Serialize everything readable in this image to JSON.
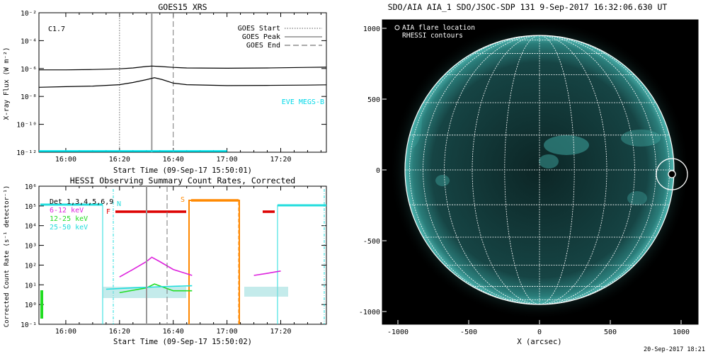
{
  "chart_data": [
    {
      "type": "line",
      "title": "GOES15 XRS",
      "xlabel": "Start Time (09-Sep-17 15:50:01)",
      "ylabel": "X-ray Flux (W m⁻²)",
      "yscale": "log",
      "xlim_minutes_after_15_50": [
        0,
        107
      ],
      "ylim": [
        1e-12,
        0.01
      ],
      "x_ticks": [
        "16:00",
        "16:20",
        "16:40",
        "17:00",
        "17:20"
      ],
      "y_ticks": [
        "10⁻¹²",
        "10⁻¹⁰",
        "10⁻⁸",
        "10⁻⁶",
        "10⁻⁴",
        "10⁻²"
      ],
      "flare_class": "C1.7",
      "legend": [
        "GOES Start",
        "GOES Peak",
        "GOES End"
      ],
      "annotation": "EVE MEGS-B",
      "events": {
        "start": "16:20",
        "peak": "16:32",
        "end": "16:40"
      },
      "series": [
        {
          "name": "1-8 Å",
          "color": "#000000",
          "x": [
            "15:50",
            "16:00",
            "16:10",
            "16:20",
            "16:25",
            "16:30",
            "16:32",
            "16:35",
            "16:40",
            "16:45",
            "17:00",
            "17:15",
            "17:30",
            "17:37"
          ],
          "values": [
            8e-07,
            8e-07,
            8.5e-07,
            9.5e-07,
            1.1e-06,
            1.4e-06,
            1.5e-06,
            1.4e-06,
            1.2e-06,
            1.1e-06,
            1.05e-06,
            1.1e-06,
            1.2e-06,
            1.25e-06
          ]
        },
        {
          "name": "0.5-4 Å",
          "color": "#000000",
          "x": [
            "15:50",
            "16:00",
            "16:10",
            "16:20",
            "16:25",
            "16:30",
            "16:33",
            "16:36",
            "16:40",
            "16:45",
            "17:00",
            "17:15",
            "17:30",
            "17:37"
          ],
          "values": [
            4.5e-08,
            5e-08,
            5.5e-08,
            7e-08,
            1e-07,
            1.6e-07,
            2.2e-07,
            1.6e-07,
            9e-08,
            7e-08,
            6e-08,
            6.2e-08,
            6.5e-08,
            6.8e-08
          ]
        },
        {
          "name": "EVE MEGS-B",
          "color": "#00e5ee",
          "x": [
            "15:50",
            "17:00"
          ],
          "values": [
            1.2e-12,
            1.2e-12
          ]
        }
      ]
    },
    {
      "type": "line",
      "title": "HESSI Observing Summary Count Rates, Corrected",
      "xlabel": "Start Time (09-Sep-17 15:50:02)",
      "ylabel": "Corrected Count Rate (s⁻¹ detector⁻¹)",
      "yscale": "log",
      "ylim": [
        0.1,
        1000000.0
      ],
      "x_ticks": [
        "16:00",
        "16:20",
        "16:40",
        "17:00",
        "17:20"
      ],
      "y_ticks": [
        "10⁻¹",
        "10⁰",
        "10¹",
        "10²",
        "10³",
        "10⁴",
        "10⁵",
        "10⁶"
      ],
      "legend_title": "Det 1,3,4,5,6,9",
      "legend": [
        {
          "label": "6-12 keV",
          "color": "#dd22dd"
        },
        {
          "label": "12-25 keV",
          "color": "#22dd22"
        },
        {
          "label": "25-50 keV",
          "color": "#22dddd"
        }
      ],
      "flags": [
        {
          "label": "N",
          "color": "#22dddd"
        },
        {
          "label": "F",
          "color": "#dd0000"
        },
        {
          "label": "S",
          "color": "#ff8800"
        }
      ],
      "series": [
        {
          "name": "6-12 keV",
          "color": "#dd22dd",
          "x": [
            "16:20",
            "16:25",
            "16:30",
            "16:32",
            "16:35",
            "16:40",
            "16:47"
          ],
          "values": [
            25,
            60,
            150,
            250,
            150,
            60,
            30
          ]
        },
        {
          "name": "6-12 keV (late)",
          "color": "#dd22dd",
          "x": [
            "17:10",
            "17:15",
            "17:18",
            "17:20"
          ],
          "values": [
            30,
            38,
            45,
            50
          ]
        },
        {
          "name": "12-25 keV",
          "color": "#22dd22",
          "x": [
            "16:20",
            "16:30",
            "16:33",
            "16:40",
            "16:47"
          ],
          "values": [
            4,
            7,
            11,
            5,
            5
          ]
        },
        {
          "name": "25-50 keV",
          "color": "#22dddd",
          "x": [
            "16:15",
            "16:25",
            "16:35",
            "16:47"
          ],
          "values": [
            6,
            7,
            8,
            9
          ]
        }
      ]
    },
    {
      "type": "scatter",
      "title": "SDO/AIA AIA_1 SDO/JSOC-SDP 131  9-Sep-2017 16:32:06.630 UT",
      "xlabel": "X (arcsec)",
      "ylabel": "",
      "xlim": [
        -1100,
        1100
      ],
      "ylim": [
        -1100,
        1100
      ],
      "x_ticks": [
        "-1000",
        "-500",
        "0",
        "500",
        "1000"
      ],
      "y_ticks": [
        "1000",
        "500",
        "0",
        "-500",
        "-1000"
      ],
      "legend": [
        "AIA flare location",
        "RHESSI contours"
      ],
      "flare_location": {
        "x": 935,
        "y": -30
      },
      "disk_radius_arcsec": 950
    }
  ],
  "footer": {
    "timestamp": "20-Sep-2017 18:21"
  }
}
